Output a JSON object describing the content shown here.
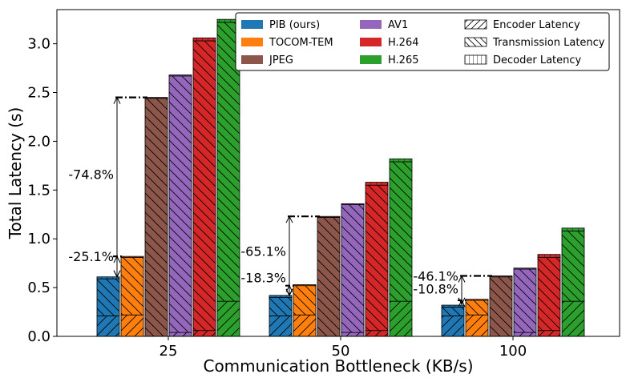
{
  "chart_data": {
    "type": "bar",
    "xlabel": "Communication Bottleneck (KB/s)",
    "ylabel": "Total Latency (s)",
    "ylim": [
      0,
      3.35
    ],
    "yticks": [
      "0.0",
      "0.5",
      "1.0",
      "1.5",
      "2.0",
      "2.5",
      "3.0"
    ],
    "grid": false,
    "legend_position": "top-right",
    "categories": [
      "25",
      "50",
      "100"
    ],
    "series": [
      {
        "name": "PIB (ours)",
        "color": "#1f77b4",
        "encoder": [
          0.21,
          0.21,
          0.21
        ],
        "transmission": [
          0.38,
          0.19,
          0.09
        ],
        "decoder": [
          0.02,
          0.02,
          0.02
        ]
      },
      {
        "name": "TOCOM-TEM",
        "color": "#ff7f0e",
        "encoder": [
          0.22,
          0.22,
          0.22
        ],
        "transmission": [
          0.59,
          0.3,
          0.15
        ],
        "decoder": [
          0.01,
          0.01,
          0.01
        ]
      },
      {
        "name": "JPEG",
        "color": "#8c564b",
        "encoder": [
          0.0,
          0.0,
          0.0
        ],
        "transmission": [
          2.44,
          1.22,
          0.61
        ],
        "decoder": [
          0.01,
          0.01,
          0.01
        ]
      },
      {
        "name": "AV1",
        "color": "#9467bd",
        "encoder": [
          0.04,
          0.04,
          0.04
        ],
        "transmission": [
          2.63,
          1.31,
          0.65
        ],
        "decoder": [
          0.01,
          0.01,
          0.01
        ]
      },
      {
        "name": "H.264",
        "color": "#d62728",
        "encoder": [
          0.06,
          0.06,
          0.06
        ],
        "transmission": [
          2.97,
          1.49,
          0.75
        ],
        "decoder": [
          0.03,
          0.03,
          0.03
        ]
      },
      {
        "name": "H.265",
        "color": "#2ca02c",
        "encoder": [
          0.36,
          0.36,
          0.36
        ],
        "transmission": [
          2.86,
          1.43,
          0.72
        ],
        "decoder": [
          0.03,
          0.03,
          0.03
        ]
      }
    ],
    "latency_components": [
      "Encoder Latency",
      "Transmission Latency",
      "Decoder Latency"
    ],
    "annotations": [
      {
        "category": "25",
        "pct_vs_codec": "-74.8%",
        "pct_vs_tocom": "-25.1%",
        "reference_value": 2.45,
        "pib_value": 0.61,
        "tocom_value": 0.82
      },
      {
        "category": "50",
        "pct_vs_codec": "-65.1%",
        "pct_vs_tocom": "-18.3%",
        "reference_value": 1.23,
        "pib_value": 0.42,
        "tocom_value": 0.52
      },
      {
        "category": "100",
        "pct_vs_codec": "-46.1%",
        "pct_vs_tocom": "-10.8%",
        "reference_value": 0.62,
        "pib_value": 0.33,
        "tocom_value": 0.37
      }
    ]
  }
}
